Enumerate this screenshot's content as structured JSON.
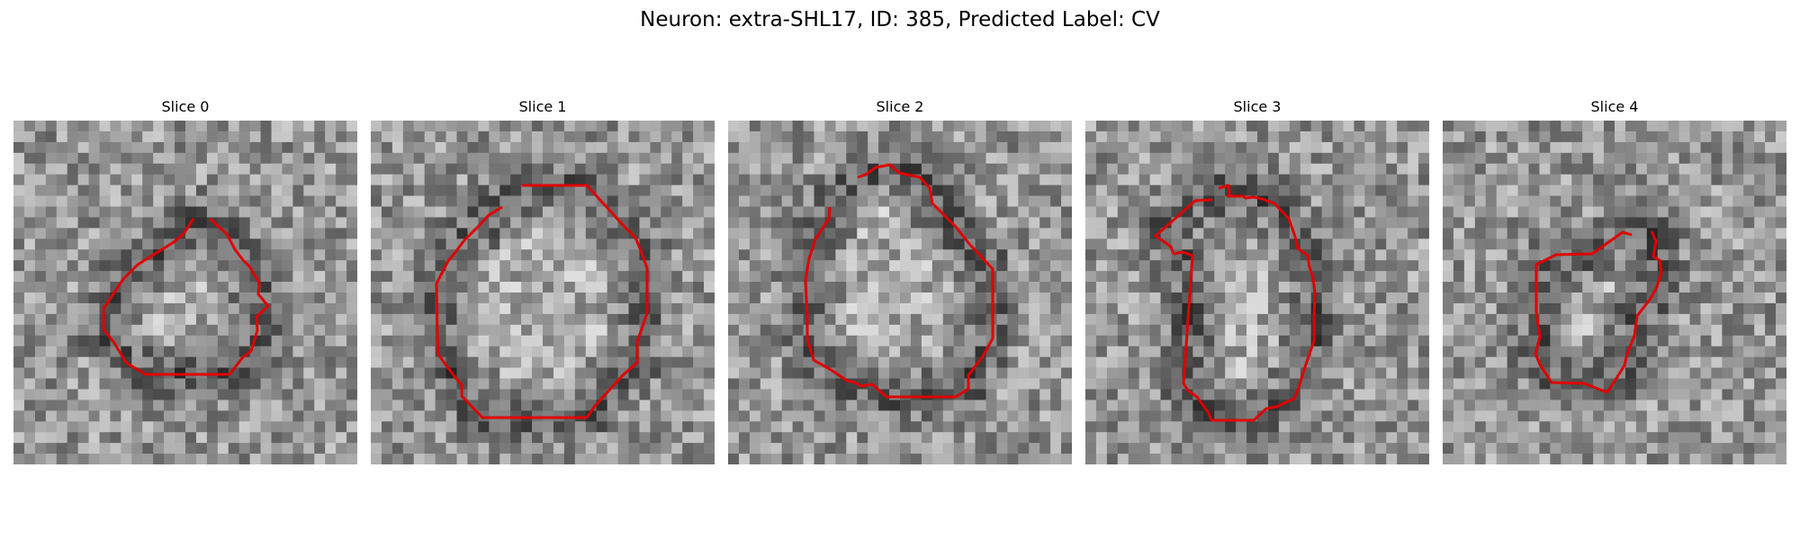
{
  "figure": {
    "title": "Neuron: extra-SHL17, ID: 385, Predicted Label: CV"
  },
  "contour_color": "#e00000",
  "image_grid_size": 32,
  "panels": [
    {
      "title": "Slice 0"
    },
    {
      "title": "Slice 1"
    },
    {
      "title": "Slice 2"
    },
    {
      "title": "Slice 3"
    },
    {
      "title": "Slice 4"
    }
  ]
}
